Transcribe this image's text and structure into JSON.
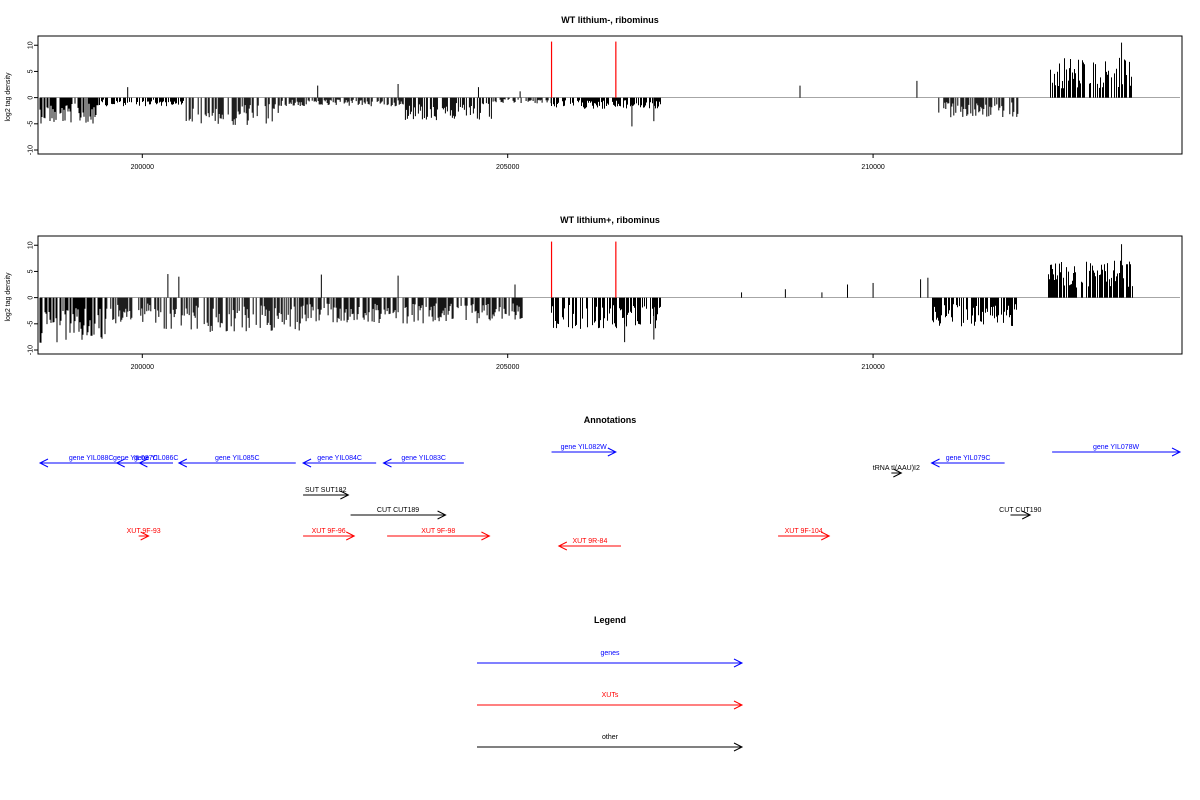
{
  "chart_data": [
    {
      "type": "bar",
      "title": "WT lithium-, ribominus",
      "ylabel": "log2 tag density",
      "xlim": [
        198600,
        214200
      ],
      "ylim": [
        -10,
        11
      ],
      "yticks": [
        "-10",
        "-5",
        "0",
        "5",
        "10"
      ],
      "xticks": [
        "200000",
        "205000",
        "210000"
      ],
      "colors": {
        "density": "#000000",
        "marker": "#ff0000"
      },
      "markers_x": [
        205600,
        206480
      ],
      "segments": [
        {
          "from": 198600,
          "to": 199400,
          "level": -4.5
        },
        {
          "from": 199400,
          "to": 200600,
          "level": -1.5
        },
        {
          "from": 200600,
          "to": 201900,
          "level": -4.8
        },
        {
          "from": 201900,
          "to": 203600,
          "level": -1.5
        },
        {
          "from": 203600,
          "to": 204800,
          "level": -4
        },
        {
          "from": 204800,
          "to": 205600,
          "level": -1
        },
        {
          "from": 205600,
          "to": 207100,
          "level": -2
        },
        {
          "from": 210900,
          "to": 212000,
          "level": -3.5
        },
        {
          "from": 212400,
          "to": 213550,
          "level": 7
        }
      ],
      "spikes": [
        {
          "x": 199800,
          "y": 2
        },
        {
          "x": 202400,
          "y": 2.3
        },
        {
          "x": 203500,
          "y": 2.6
        },
        {
          "x": 204600,
          "y": 2
        },
        {
          "x": 205170,
          "y": 1.2
        },
        {
          "x": 206700,
          "y": -5.5
        },
        {
          "x": 207000,
          "y": -4.5
        },
        {
          "x": 209000,
          "y": 2.3
        },
        {
          "x": 210600,
          "y": 3.2
        },
        {
          "x": 213400,
          "y": 10.5
        }
      ]
    },
    {
      "type": "bar",
      "title": "WT lithium+, ribominus",
      "ylabel": "log2 tag density",
      "xlim": [
        198600,
        214200
      ],
      "ylim": [
        -10,
        11
      ],
      "yticks": [
        "-10",
        "-5",
        "0",
        "5",
        "10"
      ],
      "xticks": [
        "200000",
        "205000",
        "210000"
      ],
      "colors": {
        "density": "#000000",
        "marker": "#ff0000"
      },
      "markers_x": [
        205600,
        206480
      ],
      "segments": [
        {
          "from": 198600,
          "to": 199500,
          "level": -8
        },
        {
          "from": 199500,
          "to": 200300,
          "level": -4.5
        },
        {
          "from": 200300,
          "to": 202200,
          "level": -6
        },
        {
          "from": 202200,
          "to": 205200,
          "level": -4.5
        },
        {
          "from": 205600,
          "to": 207100,
          "level": -5.5
        },
        {
          "from": 210800,
          "to": 212000,
          "level": -5
        },
        {
          "from": 212400,
          "to": 213550,
          "level": 6.5
        }
      ],
      "spikes": [
        {
          "x": 200350,
          "y": 4.5
        },
        {
          "x": 200500,
          "y": 4
        },
        {
          "x": 202450,
          "y": 4.4
        },
        {
          "x": 203500,
          "y": 4.2
        },
        {
          "x": 205100,
          "y": 2.5
        },
        {
          "x": 206600,
          "y": -8.5
        },
        {
          "x": 207000,
          "y": -8
        },
        {
          "x": 208200,
          "y": 1
        },
        {
          "x": 208800,
          "y": 1.6
        },
        {
          "x": 209300,
          "y": 1
        },
        {
          "x": 209650,
          "y": 2.5
        },
        {
          "x": 210000,
          "y": 2.8
        },
        {
          "x": 210650,
          "y": 3.5
        },
        {
          "x": 210750,
          "y": 3.8
        },
        {
          "x": 213400,
          "y": 10.2
        }
      ]
    }
  ],
  "annotations": {
    "title": "Annotations",
    "xlim": [
      198600,
      214200
    ],
    "colors": {
      "genes": "#0000ff",
      "XUTs": "#ff0000",
      "other": "#000000"
    },
    "features": [
      {
        "label": "gene YIL088C",
        "type": "genes",
        "start": 198600,
        "end": 200000,
        "strand": "-",
        "row": 0
      },
      {
        "label": "gene YIL087C",
        "type": "genes",
        "start": 199650,
        "end": 200160,
        "strand": "-",
        "row": 0
      },
      {
        "label": "gene YIL086C",
        "type": "genes",
        "start": 199960,
        "end": 200420,
        "strand": "-",
        "row": 0
      },
      {
        "label": "gene YIL085C",
        "type": "genes",
        "start": 200500,
        "end": 202100,
        "strand": "-",
        "row": 0
      },
      {
        "label": "gene YIL084C",
        "type": "genes",
        "start": 202200,
        "end": 203200,
        "strand": "-",
        "row": 0
      },
      {
        "label": "gene YIL083C",
        "type": "genes",
        "start": 203300,
        "end": 204400,
        "strand": "-",
        "row": 0
      },
      {
        "label": "gene YIL082W",
        "type": "genes",
        "start": 205600,
        "end": 206480,
        "strand": "+",
        "row": 1
      },
      {
        "label": "tRNA tI(AAU)I2",
        "type": "other",
        "start": 210250,
        "end": 210330,
        "strand": "+",
        "row": 2
      },
      {
        "label": "gene YIL079C",
        "type": "genes",
        "start": 210800,
        "end": 211800,
        "strand": "-",
        "row": 0
      },
      {
        "label": "gene YIL078W",
        "type": "genes",
        "start": 212450,
        "end": 214200,
        "strand": "+",
        "row": 1
      },
      {
        "label": "SUT SUT182",
        "type": "other",
        "start": 202200,
        "end": 202820,
        "strand": "+",
        "row": 3
      },
      {
        "label": "CUT CUT189",
        "type": "other",
        "start": 202850,
        "end": 204150,
        "strand": "+",
        "row": 4
      },
      {
        "label": "CUT CUT190",
        "type": "other",
        "start": 211880,
        "end": 212150,
        "strand": "+",
        "row": 4
      },
      {
        "label": "XUT 9F-93",
        "type": "XUTs",
        "start": 199950,
        "end": 200000,
        "strand": "+",
        "row": 5
      },
      {
        "label": "XUT 9F-96",
        "type": "XUTs",
        "start": 202200,
        "end": 202900,
        "strand": "+",
        "row": 5
      },
      {
        "label": "XUT 9F-98",
        "type": "XUTs",
        "start": 203350,
        "end": 204750,
        "strand": "+",
        "row": 5
      },
      {
        "label": "XUT 9R-84",
        "type": "XUTs",
        "start": 205700,
        "end": 206550,
        "strand": "-",
        "row": 6
      },
      {
        "label": "XUT 9F-104",
        "type": "XUTs",
        "start": 208700,
        "end": 209400,
        "strand": "+",
        "row": 5
      }
    ]
  },
  "legend": {
    "title": "Legend",
    "items": [
      {
        "label": "genes",
        "type": "genes"
      },
      {
        "label": "XUTs",
        "type": "XUTs"
      },
      {
        "label": "other",
        "type": "other"
      }
    ]
  }
}
